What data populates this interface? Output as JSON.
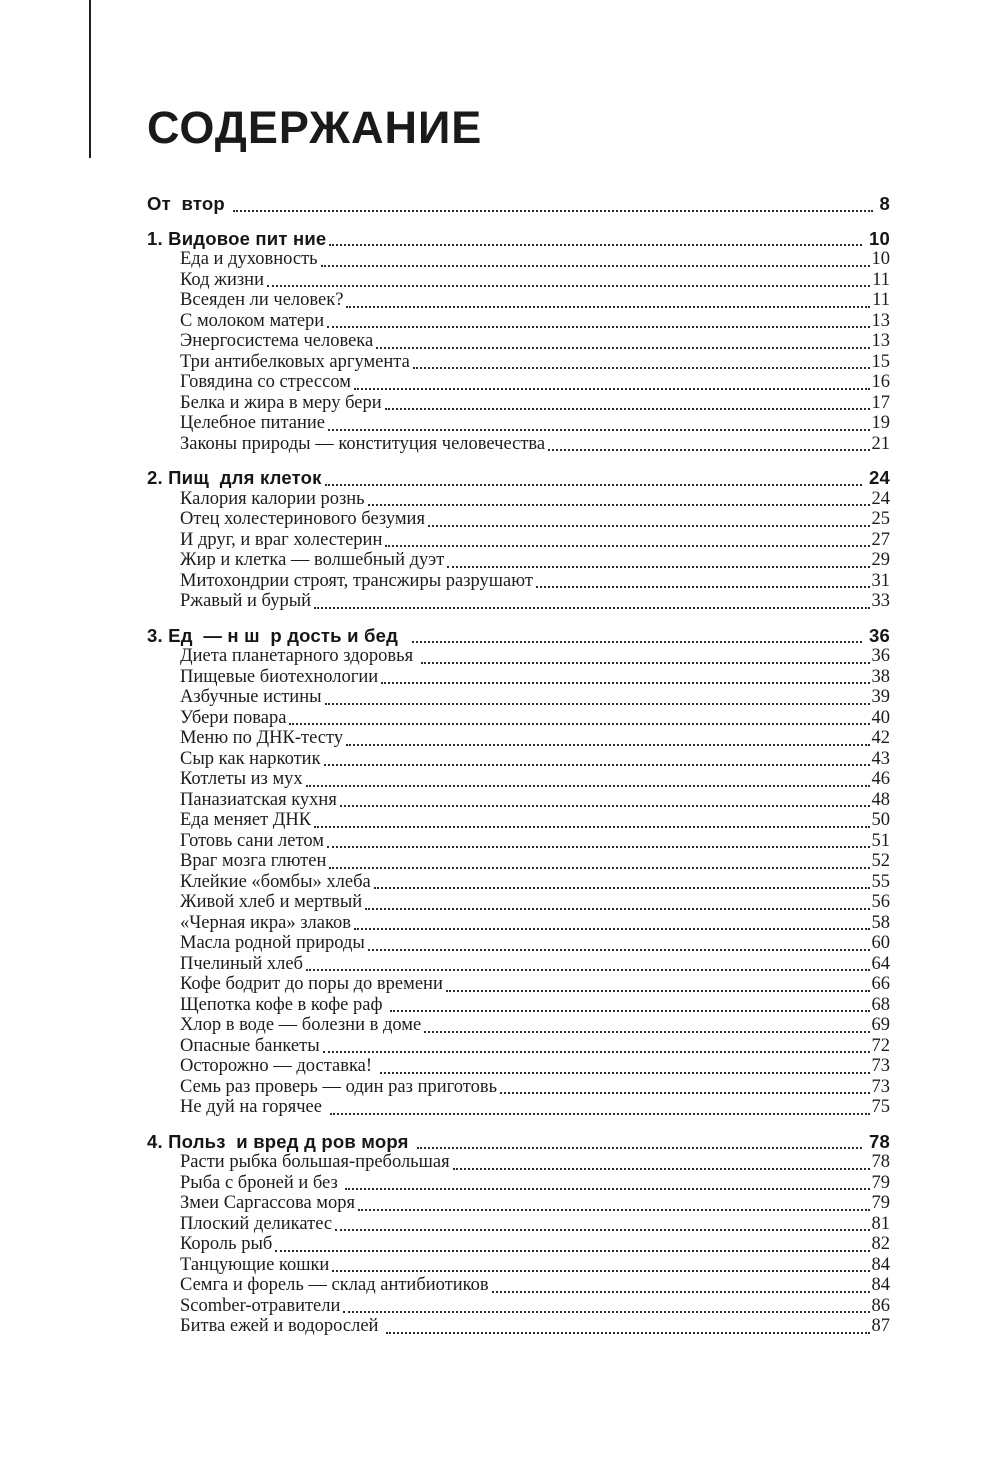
{
  "page": {
    "title": "СОДЕРЖАНИЕ"
  },
  "colors": {
    "text": "#1b1b1b",
    "background": "#ffffff",
    "dot_leader": "#2c2c2c"
  },
  "toc": {
    "front": [
      {
        "label": "От  втор ",
        "page": "8"
      }
    ],
    "sections": [
      {
        "label": "1. Видовое пит ние",
        "page": "10",
        "items": [
          {
            "label": "Еда и духовность",
            "page": "10"
          },
          {
            "label": "Код жизни",
            "page": "11"
          },
          {
            "label": "Всеяден ли человек?",
            "page": "11"
          },
          {
            "label": "С молоком матери",
            "page": "13"
          },
          {
            "label": "Энергосистема человека",
            "page": "13"
          },
          {
            "label": "Три антибелковых аргумента",
            "page": "15"
          },
          {
            "label": "Говядина со стрессом",
            "page": "16"
          },
          {
            "label": "Белка и жира в меру бери",
            "page": "17"
          },
          {
            "label": "Целебное питание",
            "page": "19"
          },
          {
            "label": "Законы природы — конституция человечества",
            "page": "21"
          }
        ]
      },
      {
        "label": "2. Пищ  для клеток",
        "page": "24",
        "items": [
          {
            "label": "Калория калории рознь",
            "page": "24"
          },
          {
            "label": "Отец холестеринового безумия",
            "page": "25"
          },
          {
            "label": "И друг, и враг холестерин",
            "page": "27"
          },
          {
            "label": "Жир и клетка — волшебный дуэт",
            "page": "29"
          },
          {
            "label": "Митохондрии строят, трансжиры разрушают",
            "page": "31"
          },
          {
            "label": "Ржавый и бурый",
            "page": "33"
          }
        ]
      },
      {
        "label": "3. Ед  — н ш  р дость и бед  ",
        "page": "36",
        "items": [
          {
            "label": "Диета планетарного здоровья ",
            "page": "36"
          },
          {
            "label": "Пищевые биотехнологии",
            "page": "38"
          },
          {
            "label": "Азбучные истины",
            "page": "39"
          },
          {
            "label": "Убери повара",
            "page": "40"
          },
          {
            "label": "Меню по ДНК-тесту",
            "page": "42"
          },
          {
            "label": "Сыр как наркотик",
            "page": "43"
          },
          {
            "label": "Котлеты из мух",
            "page": "46"
          },
          {
            "label": "Паназиатская кухня",
            "page": "48"
          },
          {
            "label": "Еда меняет ДНК",
            "page": "50"
          },
          {
            "label": "Готовь сани летом",
            "page": "51"
          },
          {
            "label": "Враг мозга глютен",
            "page": "52"
          },
          {
            "label": "Клейкие «бомбы» хлеба",
            "page": "55"
          },
          {
            "label": "Живой хлеб и мертвый",
            "page": "56"
          },
          {
            "label": "«Черная икра» злаков",
            "page": "58"
          },
          {
            "label": "Масла родной природы",
            "page": "60"
          },
          {
            "label": "Пчелиный хлеб",
            "page": "64"
          },
          {
            "label": "Кофе бодрит до поры до времени",
            "page": "66"
          },
          {
            "label": "Щепотка кофе в кофе раф ",
            "page": "68"
          },
          {
            "label": "Хлор в воде — болезни в доме",
            "page": "69"
          },
          {
            "label": "Опасные банкеты",
            "page": "72"
          },
          {
            "label": "Осторожно — доставка! ",
            "page": "73"
          },
          {
            "label": "Семь раз проверь — один раз приготовь",
            "page": "73"
          },
          {
            "label": "Не дуй на горячее ",
            "page": "75"
          }
        ]
      },
      {
        "label": "4. Польз  и вред д ров моря ",
        "page": "78",
        "items": [
          {
            "label": "Расти рыбка большая-пребольшая",
            "page": "78"
          },
          {
            "label": "Рыба с броней и без ",
            "page": "79"
          },
          {
            "label": "Змеи Саргассова моря",
            "page": "79"
          },
          {
            "label": "Плоский деликатес",
            "page": "81"
          },
          {
            "label": "Король рыб",
            "page": "82"
          },
          {
            "label": "Танцующие кошки",
            "page": "84"
          },
          {
            "label": "Семга и форель — склад антибиотиков",
            "page": "84"
          },
          {
            "label": "Scomber-отравители",
            "page": "86"
          },
          {
            "label": "Битва ежей и водорослей ",
            "page": "87"
          }
        ]
      }
    ]
  }
}
